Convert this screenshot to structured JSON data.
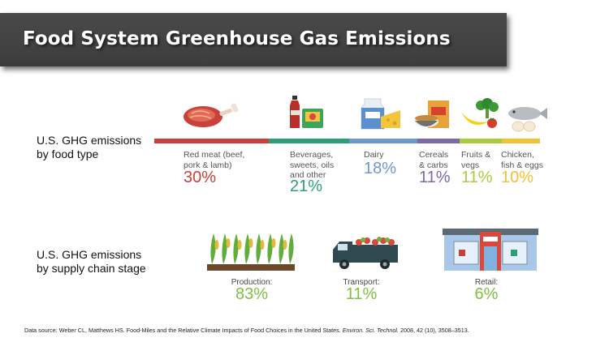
{
  "title": "Food System Greenhouse Gas Emissions",
  "rows": {
    "food_type_label": "U.S. GHG emissions\nby food type",
    "supply_chain_label": "U.S. GHG emissions\nby supply chain stage"
  },
  "food_types": [
    {
      "name": "Red meat (beef,\npork & lamb)",
      "value": "30%",
      "share": 30,
      "color": "#c9413b",
      "icon": "meat-icon"
    },
    {
      "name": "Beverages,\nsweets, oils\nand other",
      "value": "21%",
      "share": 21,
      "color": "#2aa074",
      "icon": "soda-and-candy-icon"
    },
    {
      "name": "Dairy",
      "value": "18%",
      "share": 18,
      "color": "#6a98cf",
      "icon": "milk-and-cheese-icon"
    },
    {
      "name": "Cereals\n& carbs",
      "value": "11%",
      "share": 11,
      "color": "#7b6aa8",
      "icon": "cereal-box-icon"
    },
    {
      "name": "Fruits &\nvegs",
      "value": "11%",
      "share": 11,
      "color": "#a9cd3a",
      "icon": "fruits-and-vegetables-icon"
    },
    {
      "name": "Chicken,\nfish & eggs",
      "value": "10%",
      "share": 10,
      "color": "#f1c232",
      "icon": "fish-and-eggs-icon"
    }
  ],
  "stages": [
    {
      "name": "Production:",
      "value": "83%",
      "icon": "crops-icon"
    },
    {
      "name": "Transport:",
      "value": "11%",
      "icon": "truck-icon"
    },
    {
      "name": "Retail:",
      "value": "6%",
      "icon": "store-icon"
    }
  ],
  "footer": {
    "prefix": "Data source: Weber CL, Matthews HS. Food-Miles and the Relative Climate Impacts of Food Choices in the United States. ",
    "journal": "Environ. Sci. Technol.",
    "suffix": " 2008, 42 (10), 3508–3513."
  }
}
